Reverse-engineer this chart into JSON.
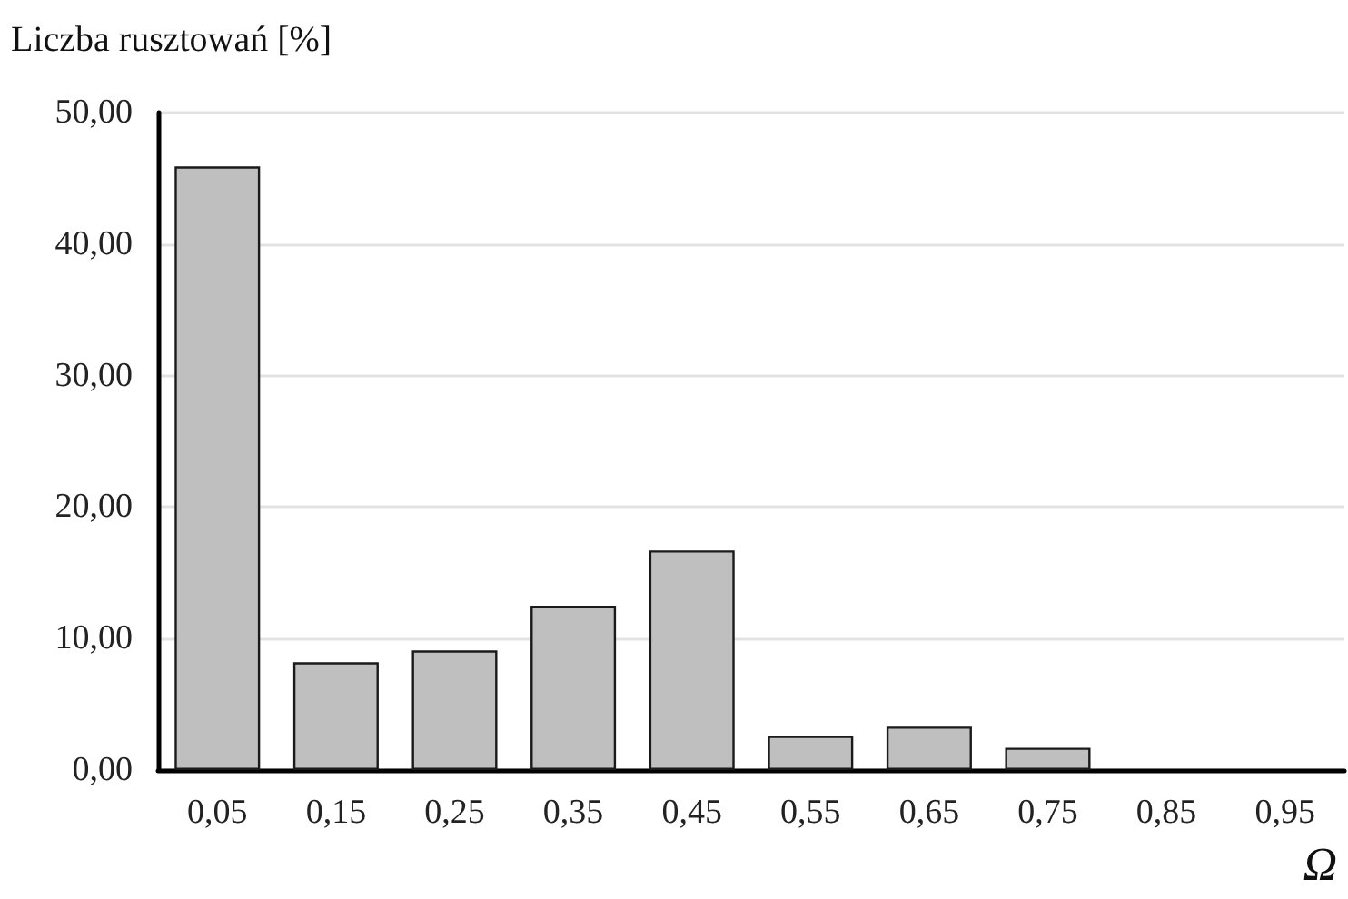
{
  "chart_data": {
    "type": "bar",
    "ylabel": "Liczba rusztowań [%]",
    "xlabel": "Ω",
    "categories": [
      "0,05",
      "0,15",
      "0,25",
      "0,35",
      "0,45",
      "0,55",
      "0,65",
      "0,75",
      "0,85",
      "0,95"
    ],
    "values": [
      45.9,
      8.2,
      9.1,
      12.5,
      16.7,
      2.6,
      3.3,
      1.7,
      0,
      0
    ],
    "color": "#bfbfbf",
    "ylim": [
      0,
      50
    ],
    "yticks": [
      {
        "value": 0,
        "label": "0,00"
      },
      {
        "value": 10,
        "label": "10,00"
      },
      {
        "value": 20,
        "label": "20,00"
      },
      {
        "value": 30,
        "label": "30,00"
      },
      {
        "value": 40,
        "label": "40,00"
      },
      {
        "value": 50,
        "label": "50,00"
      }
    ],
    "grid": "y"
  }
}
